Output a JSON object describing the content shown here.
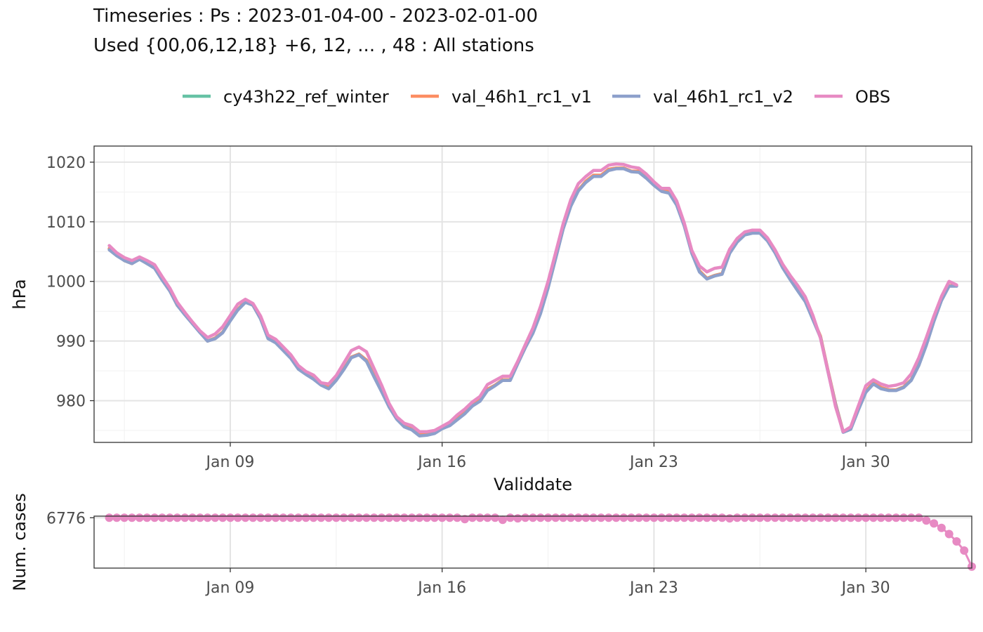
{
  "title_line1": "Timeseries : Ps : 2023-01-04-00 - 2023-02-01-00",
  "title_line2": "Used {00,06,12,18} +6, 12, ... , 48 : All stations",
  "colors": {
    "cy43h22_ref_winter": "#66C2A5",
    "val_46h1_rc1_v1": "#FC8D62",
    "val_46h1_rc1_v2": "#8DA0CB",
    "OBS": "#E78AC3"
  },
  "chart_data": [
    {
      "type": "line",
      "xlabel": "Validdate",
      "ylabel": "hPa",
      "x_ticks": [
        "Jan 09",
        "Jan 16",
        "Jan 23",
        "Jan 30"
      ],
      "y_ticks": [
        980,
        990,
        1000,
        1010,
        1020
      ],
      "xlim": [
        "2023-01-04 12:00",
        "2023-02-02 12:00"
      ],
      "ylim": [
        973,
        1022.7
      ],
      "legend_position": "top",
      "grid": true,
      "x_start": "2023-01-05 00:00",
      "x_step_hours": 6,
      "series": [
        {
          "name": "cy43h22_ref_winter",
          "values": [
            1005.5,
            1004.5,
            1003.5,
            1003.0,
            1003.8,
            1003.0,
            1002.3,
            1000.3,
            998.5,
            996.0,
            994.5,
            993.0,
            991.5,
            990.0,
            990.5,
            991.5,
            993.5,
            995.3,
            996.7,
            996.0,
            993.8,
            990.5,
            989.8,
            988.5,
            987.2,
            985.5,
            984.5,
            983.8,
            982.8,
            982.2,
            983.5,
            985.3,
            987.3,
            987.8,
            986.8,
            984.2,
            981.7,
            979.0,
            977.0,
            975.8,
            975.3,
            974.3,
            974.3,
            974.6,
            975.4,
            976.0,
            977.0,
            978.0,
            979.3,
            980.1,
            981.9,
            982.6,
            983.5,
            983.5,
            986.3,
            989.0,
            991.5,
            994.8,
            999.0,
            1004.0,
            1008.9,
            1012.7,
            1015.3,
            1016.8,
            1017.8,
            1017.8,
            1018.8,
            1019.0,
            1019.0,
            1018.5,
            1018.5,
            1017.5,
            1016.3,
            1015.3,
            1015.0,
            1013.0,
            1009.5,
            1004.9,
            1001.8,
            1000.5,
            1001.0,
            1001.3,
            1004.8,
            1006.8,
            1007.9,
            1008.3,
            1008.3,
            1007.0,
            1005.0,
            1002.5,
            1000.5,
            998.6,
            996.8,
            993.8,
            990.8,
            985.0,
            979.5,
            974.8,
            975.3,
            978.5,
            981.6,
            983.0,
            982.2,
            981.8,
            981.8,
            982.3,
            983.5,
            986.0,
            989.5,
            993.5,
            997.0,
            999.3,
            999.3
          ]
        },
        {
          "name": "val_46h1_rc1_v1",
          "values": [
            1005.5,
            1004.5,
            1003.5,
            1003.0,
            1003.8,
            1003.0,
            1002.3,
            1000.3,
            998.5,
            996.0,
            994.5,
            993.0,
            991.5,
            990.0,
            990.5,
            991.5,
            993.5,
            995.3,
            996.7,
            996.0,
            993.8,
            990.5,
            989.8,
            988.5,
            987.2,
            985.5,
            984.5,
            983.8,
            982.8,
            982.2,
            983.5,
            985.3,
            987.3,
            987.8,
            986.8,
            984.2,
            981.7,
            979.0,
            977.0,
            975.8,
            975.3,
            974.3,
            974.3,
            974.6,
            975.4,
            976.0,
            977.0,
            978.0,
            979.3,
            980.1,
            981.9,
            982.6,
            983.5,
            983.5,
            986.3,
            989.0,
            991.5,
            994.8,
            999.0,
            1004.0,
            1008.9,
            1012.7,
            1015.3,
            1016.8,
            1017.8,
            1017.8,
            1018.8,
            1019.0,
            1019.0,
            1018.5,
            1018.5,
            1017.5,
            1016.3,
            1015.3,
            1015.0,
            1013.0,
            1009.5,
            1004.9,
            1001.8,
            1000.5,
            1001.0,
            1001.3,
            1004.8,
            1006.8,
            1007.9,
            1008.3,
            1008.3,
            1007.0,
            1005.0,
            1002.5,
            1000.5,
            998.6,
            996.8,
            993.8,
            990.8,
            985.0,
            979.5,
            974.8,
            975.3,
            978.5,
            981.6,
            983.0,
            982.2,
            981.8,
            981.8,
            982.3,
            983.5,
            986.0,
            989.5,
            993.5,
            997.0,
            999.3,
            999.3
          ]
        },
        {
          "name": "val_46h1_rc1_v2",
          "values": [
            1005.3,
            1004.3,
            1003.5,
            1003.0,
            1003.7,
            1003.0,
            1002.2,
            1000.2,
            998.4,
            996.0,
            994.4,
            992.9,
            991.4,
            990.0,
            990.4,
            991.4,
            993.4,
            995.2,
            996.5,
            996.0,
            993.7,
            990.4,
            989.7,
            988.4,
            987.1,
            985.3,
            984.4,
            983.6,
            982.6,
            982.0,
            983.4,
            985.2,
            987.2,
            987.7,
            986.6,
            984.0,
            981.5,
            978.9,
            976.9,
            975.6,
            975.1,
            974.1,
            974.2,
            974.5,
            975.3,
            975.8,
            976.8,
            977.8,
            979.1,
            979.9,
            981.7,
            982.5,
            983.4,
            983.4,
            986.2,
            988.9,
            991.3,
            994.6,
            998.9,
            1003.8,
            1008.8,
            1012.6,
            1015.2,
            1016.6,
            1017.6,
            1017.6,
            1018.6,
            1018.9,
            1018.9,
            1018.4,
            1018.3,
            1017.3,
            1016.1,
            1015.1,
            1014.8,
            1012.8,
            1009.3,
            1004.7,
            1001.6,
            1000.4,
            1000.9,
            1001.2,
            1004.7,
            1006.6,
            1007.8,
            1008.1,
            1008.1,
            1006.8,
            1004.8,
            1002.3,
            1000.3,
            998.4,
            996.6,
            993.6,
            990.6,
            984.8,
            979.3,
            974.7,
            975.2,
            978.4,
            981.4,
            982.8,
            982.0,
            981.7,
            981.7,
            982.2,
            983.4,
            985.9,
            989.3,
            993.3,
            996.8,
            999.2,
            999.2
          ]
        },
        {
          "name": "OBS",
          "values": [
            1006.0,
            1004.8,
            1004.0,
            1003.5,
            1004.1,
            1003.5,
            1002.8,
            1000.8,
            998.9,
            996.5,
            994.8,
            993.2,
            991.7,
            990.6,
            991.2,
            992.4,
            994.3,
            996.2,
            997.0,
            996.3,
            994.2,
            991.0,
            990.3,
            989.0,
            987.7,
            985.9,
            984.9,
            984.3,
            983.0,
            982.8,
            984.2,
            986.3,
            988.4,
            989.0,
            988.2,
            985.4,
            982.6,
            979.5,
            977.3,
            976.2,
            975.8,
            974.8,
            974.8,
            975.0,
            975.7,
            976.4,
            977.6,
            978.6,
            979.8,
            980.7,
            982.7,
            983.4,
            984.1,
            984.1,
            986.6,
            989.4,
            992.2,
            995.8,
            1000.0,
            1004.8,
            1009.7,
            1013.7,
            1016.4,
            1017.6,
            1018.6,
            1018.6,
            1019.5,
            1019.7,
            1019.6,
            1019.2,
            1019.0,
            1018.0,
            1016.7,
            1015.6,
            1015.6,
            1013.5,
            1009.8,
            1005.2,
            1002.6,
            1001.6,
            1002.2,
            1002.4,
            1005.4,
            1007.2,
            1008.3,
            1008.6,
            1008.6,
            1007.3,
            1005.3,
            1002.9,
            1001.0,
            999.3,
            997.4,
            994.3,
            990.5,
            984.9,
            979.0,
            974.8,
            975.6,
            979.1,
            982.5,
            983.5,
            982.8,
            982.4,
            982.6,
            983.0,
            984.5,
            987.2,
            990.6,
            994.2,
            997.5,
            1000.0,
            999.4
          ]
        }
      ]
    },
    {
      "type": "scatter",
      "ylabel": "Num. cases",
      "x_ticks": [
        "Jan 09",
        "Jan 16",
        "Jan 23",
        "Jan 30"
      ],
      "y_ticks": [
        6776
      ],
      "xlim": [
        "2023-01-04 12:00",
        "2023-02-02 12:00"
      ],
      "ylim": [
        5400,
        6820
      ],
      "grid": true,
      "x_start": "2023-01-05 00:00",
      "x_step_hours": 6,
      "series": [
        {
          "name": "OBS",
          "values": [
            6776,
            6776,
            6776,
            6776,
            6776,
            6776,
            6776,
            6776,
            6776,
            6776,
            6776,
            6776,
            6776,
            6776,
            6776,
            6776,
            6776,
            6776,
            6776,
            6776,
            6776,
            6776,
            6776,
            6776,
            6776,
            6776,
            6776,
            6776,
            6776,
            6776,
            6776,
            6776,
            6776,
            6776,
            6776,
            6776,
            6776,
            6776,
            6776,
            6776,
            6776,
            6776,
            6776,
            6776,
            6776,
            6776,
            6776,
            6740,
            6776,
            6776,
            6776,
            6776,
            6720,
            6776,
            6760,
            6776,
            6776,
            6776,
            6776,
            6776,
            6776,
            6776,
            6776,
            6776,
            6776,
            6776,
            6776,
            6776,
            6776,
            6776,
            6776,
            6776,
            6776,
            6776,
            6776,
            6776,
            6776,
            6776,
            6776,
            6776,
            6776,
            6776,
            6760,
            6776,
            6776,
            6776,
            6776,
            6776,
            6776,
            6776,
            6776,
            6776,
            6776,
            6776,
            6776,
            6776,
            6776,
            6776,
            6776,
            6776,
            6776,
            6776,
            6776,
            6776,
            6776,
            6776,
            6776,
            6776,
            6700,
            6620,
            6500,
            6330,
            6130,
            5880,
            5440
          ]
        }
      ]
    }
  ]
}
